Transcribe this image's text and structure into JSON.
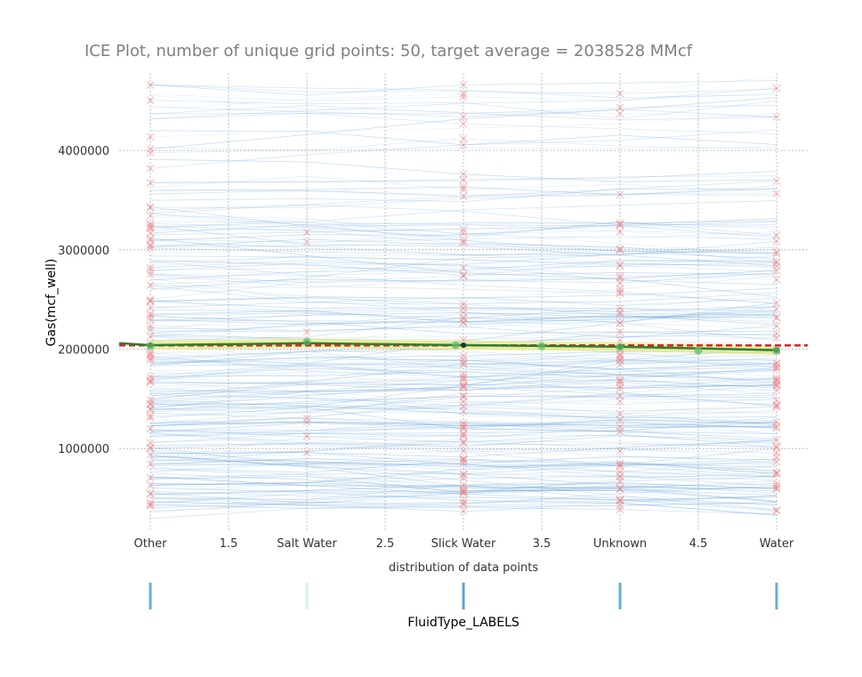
{
  "chart_data": {
    "type": "line",
    "title": "ICE Plot, number of unique grid points: 50, target average = 2038528 MMcf",
    "ylabel": "Gas(mcf_well)",
    "xlabel": "distribution of data points",
    "secondary_xlabel": "FluidType_LABELS",
    "x_ticks": [
      {
        "value": 1.0,
        "label": "Other"
      },
      {
        "value": 1.5,
        "label": "1.5"
      },
      {
        "value": 2.0,
        "label": "Salt Water"
      },
      {
        "value": 2.5,
        "label": "2.5"
      },
      {
        "value": 3.0,
        "label": "Slick Water"
      },
      {
        "value": 3.5,
        "label": "3.5"
      },
      {
        "value": 4.0,
        "label": "Unknown"
      },
      {
        "value": 4.5,
        "label": "4.5"
      },
      {
        "value": 5.0,
        "label": "Water"
      }
    ],
    "y_ticks": [
      {
        "value": 1000000,
        "label": "1000000"
      },
      {
        "value": 2000000,
        "label": "2000000"
      },
      {
        "value": 3000000,
        "label": "3000000"
      },
      {
        "value": 4000000,
        "label": "4000000"
      }
    ],
    "xlim": [
      0.8,
      5.2
    ],
    "ylim": [
      160000,
      4780000
    ],
    "grid": true,
    "target_average": 2038528,
    "ice_lines_count": 260,
    "series": [
      {
        "role": "pdp-average",
        "x": [
          1,
          2,
          3,
          4,
          5
        ],
        "values": [
          2040000,
          2060000,
          2040000,
          2025000,
          1990000
        ],
        "color": "#2e7d32"
      },
      {
        "role": "pdp-markers",
        "x": [
          1,
          2,
          2.95,
          3.5,
          4,
          4.5,
          5
        ],
        "values": [
          2030000,
          2075000,
          2040000,
          2030000,
          2020000,
          1985000,
          1985000
        ],
        "color": "#66bb6a"
      }
    ],
    "data_point_counts": [
      {
        "category": "Other",
        "intensity": 0.9
      },
      {
        "category": "Salt Water",
        "intensity": 0.2
      },
      {
        "category": "Slick Water",
        "intensity": 1.0
      },
      {
        "category": "Unknown",
        "intensity": 0.9
      },
      {
        "category": "Water",
        "intensity": 0.9
      }
    ],
    "colors": {
      "ice": "#5b9bd5",
      "pdp": "#2e7d32",
      "band": "#e8e87a",
      "target": "#d62728",
      "actual": "#f08080",
      "rug": "#5ba3cf"
    }
  }
}
